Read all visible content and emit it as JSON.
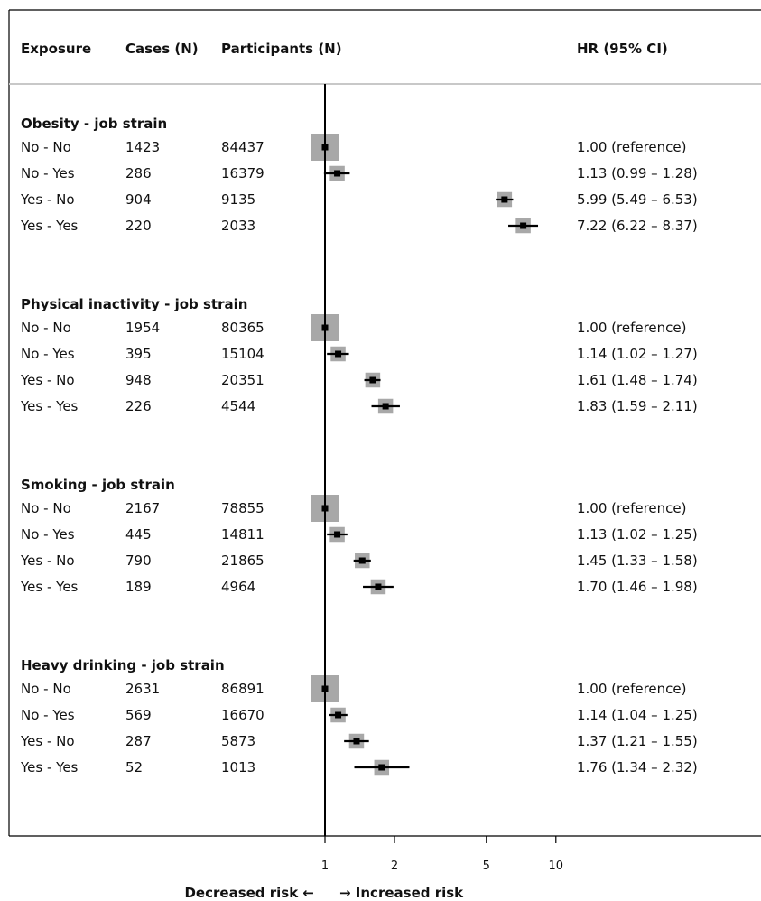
{
  "header": {
    "exposure": "Exposure",
    "cases": "Cases (N)",
    "participants": "Participants (N)",
    "hr": "HR (95% CI)"
  },
  "axis": {
    "scale": "log",
    "ticks": [
      1,
      2,
      5,
      10
    ],
    "tick_labels": [
      "1",
      "2",
      "5",
      "10"
    ],
    "label_left": "Decreased risk ←",
    "label_right": "→ Increased risk"
  },
  "chart_data": {
    "type": "forest",
    "x_scale": "log",
    "reference_line": 1,
    "groups": [
      {
        "title": "Obesity - job strain",
        "rows": [
          {
            "label": "No - No",
            "cases": "1423",
            "participants": "84437",
            "hr": 1.0,
            "lo": 1.0,
            "hi": 1.0,
            "text": "1.00 (reference)"
          },
          {
            "label": "No - Yes",
            "cases": "286",
            "participants": "16379",
            "hr": 1.13,
            "lo": 0.99,
            "hi": 1.28,
            "text": "1.13 (0.99 – 1.28)"
          },
          {
            "label": "Yes - No",
            "cases": "904",
            "participants": "9135",
            "hr": 5.99,
            "lo": 5.49,
            "hi": 6.53,
            "text": "5.99 (5.49 – 6.53)"
          },
          {
            "label": "Yes - Yes",
            "cases": "220",
            "participants": "2033",
            "hr": 7.22,
            "lo": 6.22,
            "hi": 8.37,
            "text": "7.22 (6.22 – 8.37)"
          }
        ]
      },
      {
        "title": "Physical inactivity - job strain",
        "rows": [
          {
            "label": "No - No",
            "cases": "1954",
            "participants": "80365",
            "hr": 1.0,
            "lo": 1.0,
            "hi": 1.0,
            "text": "1.00 (reference)"
          },
          {
            "label": "No - Yes",
            "cases": "395",
            "participants": "15104",
            "hr": 1.14,
            "lo": 1.02,
            "hi": 1.27,
            "text": "1.14 (1.02 – 1.27)"
          },
          {
            "label": "Yes - No",
            "cases": "948",
            "participants": "20351",
            "hr": 1.61,
            "lo": 1.48,
            "hi": 1.74,
            "text": "1.61 (1.48 – 1.74)"
          },
          {
            "label": "Yes - Yes",
            "cases": "226",
            "participants": "4544",
            "hr": 1.83,
            "lo": 1.59,
            "hi": 2.11,
            "text": "1.83 (1.59 – 2.11)"
          }
        ]
      },
      {
        "title": "Smoking - job strain",
        "rows": [
          {
            "label": "No - No",
            "cases": "2167",
            "participants": "78855",
            "hr": 1.0,
            "lo": 1.0,
            "hi": 1.0,
            "text": "1.00 (reference)"
          },
          {
            "label": "No - Yes",
            "cases": "445",
            "participants": "14811",
            "hr": 1.13,
            "lo": 1.02,
            "hi": 1.25,
            "text": "1.13 (1.02 – 1.25)"
          },
          {
            "label": "Yes - No",
            "cases": "790",
            "participants": "21865",
            "hr": 1.45,
            "lo": 1.33,
            "hi": 1.58,
            "text": "1.45 (1.33 – 1.58)"
          },
          {
            "label": "Yes - Yes",
            "cases": "189",
            "participants": "4964",
            "hr": 1.7,
            "lo": 1.46,
            "hi": 1.98,
            "text": "1.70 (1.46 – 1.98)"
          }
        ]
      },
      {
        "title": "Heavy drinking - job strain",
        "rows": [
          {
            "label": "No - No",
            "cases": "2631",
            "participants": "86891",
            "hr": 1.0,
            "lo": 1.0,
            "hi": 1.0,
            "text": "1.00 (reference)"
          },
          {
            "label": "No - Yes",
            "cases": "569",
            "participants": "16670",
            "hr": 1.14,
            "lo": 1.04,
            "hi": 1.25,
            "text": "1.14 (1.04 – 1.25)"
          },
          {
            "label": "Yes - No",
            "cases": "287",
            "participants": "5873",
            "hr": 1.37,
            "lo": 1.21,
            "hi": 1.55,
            "text": "1.37 (1.21 – 1.55)"
          },
          {
            "label": "Yes - Yes",
            "cases": "52",
            "participants": "1013",
            "hr": 1.76,
            "lo": 1.34,
            "hi": 2.32,
            "text": "1.76 (1.34 – 2.32)"
          }
        ]
      }
    ]
  },
  "colors": {
    "box": "#a8a8a8",
    "point": "#000000",
    "line": "#000000",
    "header_rule": "#c8c8c8"
  }
}
